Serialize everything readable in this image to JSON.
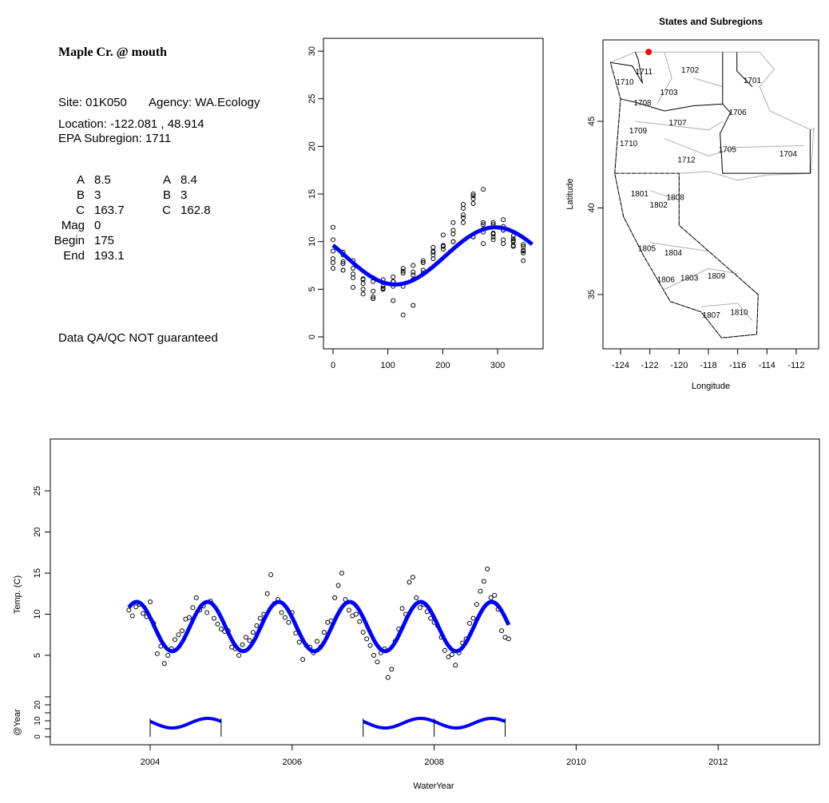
{
  "info": {
    "title": "Maple Cr. @ mouth",
    "site": "Site: 01K050",
    "agency": "Agency: WA.Ecology",
    "location": "Location: -122.081 , 48.914",
    "subregion": "EPA Subregion: 1711",
    "params_left": [
      {
        "k": "A",
        "v": "8.5"
      },
      {
        "k": "B",
        "v": "3"
      },
      {
        "k": "C",
        "v": "163.7"
      },
      {
        "k": "Mag",
        "v": "0"
      },
      {
        "k": "Begin",
        "v": "175"
      },
      {
        "k": "End",
        "v": "193.1"
      }
    ],
    "params_right": [
      {
        "k": "A",
        "v": "8.4"
      },
      {
        "k": "B",
        "v": "3"
      },
      {
        "k": "C",
        "v": "162.8"
      }
    ],
    "disclaimer": "Data QA/QC NOT guaranteed",
    "disclaimer_color": "#b22222"
  },
  "chart_data": [
    {
      "type": "scatter",
      "name": "day-of-year",
      "title": "",
      "xlabel": "",
      "ylabel": "",
      "xlim": [
        0,
        365
      ],
      "ylim": [
        0,
        30
      ],
      "xticks": [
        "0",
        "100",
        "200",
        "300"
      ],
      "yticks": [
        "0",
        "5",
        "10",
        "15",
        "20",
        "25",
        "30"
      ],
      "fit": {
        "mean": 8.5,
        "amplitude": 3,
        "peak_day": 296,
        "color": "#0000ff"
      }
    },
    {
      "type": "map",
      "name": "states-and-subregions",
      "title": "States and Subregions",
      "xlabel": "Longitude",
      "ylabel": "Latitude",
      "xticks": [
        "-124",
        "-122",
        "-120",
        "-118",
        "-116",
        "-114",
        "-112"
      ],
      "yticks": [
        "35",
        "40",
        "45"
      ],
      "site": {
        "lon": -122.081,
        "lat": 48.914,
        "color": "#ff0000"
      },
      "labels": [
        {
          "t": "1702",
          "lon": -119.25,
          "lat": 48.0
        },
        {
          "t": "1701",
          "lon": -115.0,
          "lat": 47.4
        },
        {
          "t": "1711",
          "lon": -122.4,
          "lat": 47.9
        },
        {
          "t": "1710",
          "lon": -123.7,
          "lat": 47.3
        },
        {
          "t": "1703",
          "lon": -120.7,
          "lat": 46.7
        },
        {
          "t": "1708",
          "lon": -122.5,
          "lat": 46.1
        },
        {
          "t": "1706",
          "lon": -116.0,
          "lat": 45.55
        },
        {
          "t": "1707",
          "lon": -120.1,
          "lat": 44.95
        },
        {
          "t": "1709",
          "lon": -122.8,
          "lat": 44.5
        },
        {
          "t": "1710",
          "lon": -123.45,
          "lat": 43.75
        },
        {
          "t": "1705",
          "lon": -116.7,
          "lat": 43.4
        },
        {
          "t": "1704",
          "lon": -112.55,
          "lat": 43.15
        },
        {
          "t": "1712",
          "lon": -119.5,
          "lat": 42.8
        },
        {
          "t": "1801",
          "lon": -122.7,
          "lat": 40.85
        },
        {
          "t": "1808",
          "lon": -120.25,
          "lat": 40.65
        },
        {
          "t": "1802",
          "lon": -121.4,
          "lat": 40.2
        },
        {
          "t": "1805",
          "lon": -122.2,
          "lat": 37.7
        },
        {
          "t": "1804",
          "lon": -120.4,
          "lat": 37.45
        },
        {
          "t": "1809",
          "lon": -117.45,
          "lat": 36.1
        },
        {
          "t": "1803",
          "lon": -119.3,
          "lat": 36.0
        },
        {
          "t": "1806",
          "lon": -120.9,
          "lat": 35.9
        },
        {
          "t": "1810",
          "lon": -115.9,
          "lat": 34.0
        },
        {
          "t": "1807",
          "lon": -117.8,
          "lat": 33.85
        }
      ]
    },
    {
      "type": "scatter",
      "name": "time-series",
      "xlabel": "WaterYear",
      "ylabel": "Temp. (C)",
      "inset_ylabel": "@Year",
      "xlim": [
        2002.6,
        2013.45
      ],
      "ylim": [
        0,
        30
      ],
      "xticks": [
        "2004",
        "2006",
        "2008",
        "2010",
        "2012"
      ],
      "yticks": [
        "5",
        "10",
        "15",
        "20",
        "25"
      ],
      "inset_yticks": [
        "0",
        "10",
        "20"
      ],
      "start": 2003.7,
      "step": 0.05,
      "temps": [
        10.5,
        9.8,
        10.9,
        11.2,
        10.1,
        9.7,
        11.5,
        8.9,
        5.2,
        6.1,
        4.0,
        5.0,
        5.8,
        6.9,
        7.5,
        8.0,
        9.4,
        9.6,
        10.8,
        12.0,
        10.5,
        11.0,
        10.2,
        11.6,
        9.5,
        8.8,
        8.2,
        7.9,
        8.0,
        6.0,
        5.8,
        5.0,
        6.3,
        7.2,
        6.8,
        7.8,
        8.6,
        9.5,
        10.0,
        12.5,
        14.8,
        11.3,
        11.8,
        10.2,
        9.6,
        9.0,
        10.2,
        7.7,
        6.6,
        4.5,
        6.2,
        6.0,
        5.3,
        6.7,
        6.0,
        7.8,
        9.0,
        9.2,
        12.0,
        13.5,
        15.0,
        11.8,
        10.5,
        9.8,
        10.0,
        9.1,
        7.8,
        7.0,
        6.2,
        5.0,
        4.2,
        5.3,
        5.8,
        2.3,
        3.3,
        6.7,
        8.2,
        10.7,
        10.0,
        13.9,
        14.5,
        12.0,
        10.8,
        11.2,
        10.3,
        9.5,
        9.0,
        8.6,
        7.2,
        5.6,
        4.8,
        5.1,
        3.8,
        5.3,
        6.5,
        7.0,
        8.9,
        9.5,
        11.2,
        12.8,
        14.0,
        15.5,
        12.0,
        12.3,
        10.6,
        8.0,
        7.2,
        7.0
      ],
      "fit": {
        "mean": 8.5,
        "amplitude": 3,
        "peak_frac": 0.81,
        "range": [
          2003.7,
          2009.05
        ],
        "color": "#0000ff"
      },
      "annual_fits": [
        [
          2004,
          2005
        ],
        [
          2007,
          2009
        ]
      ]
    }
  ]
}
